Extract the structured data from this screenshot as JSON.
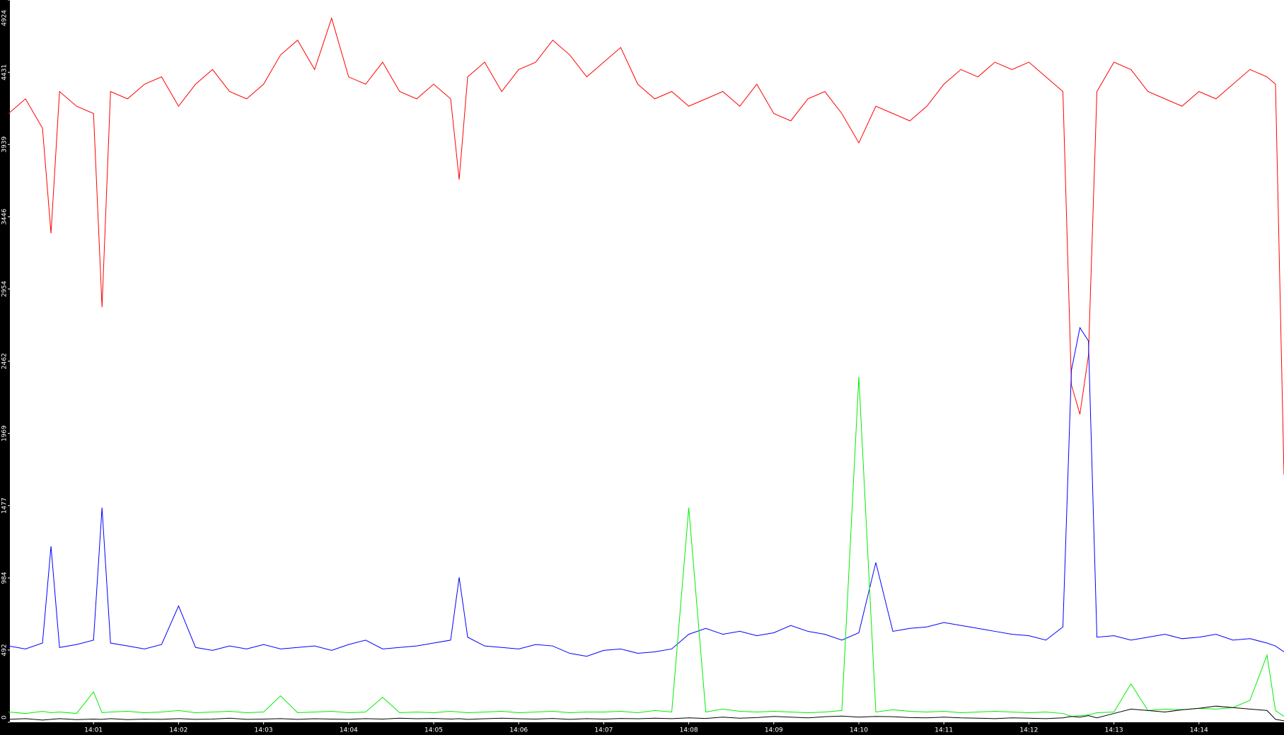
{
  "chart_data": {
    "type": "line",
    "x": [
      840.0,
      840.2,
      840.4,
      840.5,
      840.6,
      840.8,
      841.0,
      841.1,
      841.2,
      841.4,
      841.6,
      841.8,
      842.0,
      842.2,
      842.4,
      842.6,
      842.8,
      843.0,
      843.2,
      843.4,
      843.6,
      843.8,
      844.0,
      844.2,
      844.4,
      844.6,
      844.8,
      845.0,
      845.2,
      845.3,
      845.4,
      845.6,
      845.8,
      846.0,
      846.2,
      846.4,
      846.6,
      846.8,
      847.0,
      847.2,
      847.4,
      847.6,
      847.8,
      848.0,
      848.2,
      848.4,
      848.6,
      848.8,
      849.0,
      849.2,
      849.4,
      849.6,
      849.8,
      850.0,
      850.2,
      850.4,
      850.6,
      850.8,
      851.0,
      851.2,
      851.4,
      851.6,
      851.8,
      852.0,
      852.2,
      852.4,
      852.5,
      852.6,
      852.7,
      852.8,
      853.0,
      853.2,
      853.4,
      853.6,
      853.8,
      854.0,
      854.2,
      854.4,
      854.6,
      854.8,
      854.9,
      855.0
    ],
    "series": [
      {
        "color": "#ff0000",
        "values": [
          4150,
          4250,
          4050,
          3333,
          4300,
          4200,
          4150,
          2830,
          4300,
          4250,
          4350,
          4400,
          4200,
          4350,
          4450,
          4300,
          4250,
          4350,
          4550,
          4650,
          4450,
          4800,
          4400,
          4350,
          4500,
          4300,
          4250,
          4350,
          4250,
          3700,
          4400,
          4500,
          4300,
          4450,
          4500,
          4650,
          4550,
          4400,
          4500,
          4600,
          4350,
          4250,
          4300,
          4200,
          4250,
          4300,
          4200,
          4350,
          4150,
          4100,
          4250,
          4300,
          4150,
          3950,
          4200,
          4150,
          4100,
          4200,
          4350,
          4450,
          4400,
          4500,
          4450,
          4500,
          4400,
          4300,
          2300,
          2100,
          2500,
          4300,
          4500,
          4450,
          4300,
          4250,
          4200,
          4300,
          4250,
          4350,
          4450,
          4400,
          4350,
          1686
        ]
      },
      {
        "color": "#0000ff",
        "values": [
          520,
          500,
          540,
          1200,
          510,
          530,
          560,
          1463,
          540,
          520,
          500,
          530,
          793,
          510,
          490,
          520,
          500,
          530,
          500,
          510,
          520,
          490,
          530,
          560,
          500,
          510,
          520,
          540,
          560,
          988,
          580,
          520,
          510,
          500,
          530,
          520,
          470,
          450,
          490,
          500,
          470,
          480,
          500,
          600,
          640,
          600,
          620,
          590,
          610,
          660,
          620,
          600,
          560,
          610,
          1089,
          620,
          640,
          650,
          680,
          660,
          640,
          620,
          600,
          590,
          560,
          650,
          2400,
          2690,
          2600,
          580,
          590,
          560,
          580,
          600,
          570,
          580,
          600,
          560,
          570,
          540,
          520,
          480
        ]
      },
      {
        "color": "#00ee00",
        "values": [
          70,
          60,
          75,
          65,
          70,
          60,
          207,
          65,
          70,
          75,
          65,
          70,
          80,
          65,
          70,
          75,
          65,
          70,
          180,
          65,
          70,
          75,
          65,
          70,
          170,
          65,
          70,
          65,
          75,
          70,
          65,
          70,
          75,
          65,
          70,
          75,
          65,
          70,
          70,
          75,
          65,
          80,
          70,
          1463,
          70,
          90,
          75,
          70,
          75,
          70,
          65,
          70,
          80,
          2356,
          70,
          85,
          75,
          70,
          75,
          65,
          70,
          75,
          70,
          65,
          70,
          60,
          40,
          45,
          50,
          65,
          70,
          262,
          80,
          90,
          85,
          95,
          90,
          100,
          150,
          458,
          80,
          40
        ]
      },
      {
        "color": "#000000",
        "values": [
          20,
          25,
          15,
          20,
          25,
          18,
          22,
          20,
          25,
          18,
          22,
          20,
          25,
          20,
          22,
          28,
          20,
          22,
          25,
          20,
          24,
          22,
          20,
          25,
          22,
          28,
          24,
          26,
          22,
          25,
          20,
          24,
          28,
          24,
          22,
          26,
          20,
          25,
          22,
          26,
          24,
          28,
          25,
          30,
          26,
          35,
          28,
          32,
          40,
          35,
          30,
          38,
          42,
          35,
          40,
          38,
          32,
          30,
          35,
          30,
          28,
          25,
          30,
          28,
          25,
          30,
          40,
          35,
          45,
          30,
          60,
          90,
          80,
          70,
          85,
          95,
          110,
          100,
          90,
          80,
          20,
          10
        ]
      }
    ],
    "xlim": [
      840,
      855
    ],
    "xticks": [
      {
        "value": 841,
        "label": "14:01"
      },
      {
        "value": 842,
        "label": "14:02"
      },
      {
        "value": 843,
        "label": "14:03"
      },
      {
        "value": 844,
        "label": "14:04"
      },
      {
        "value": 845,
        "label": "14:05"
      },
      {
        "value": 846,
        "label": "14:06"
      },
      {
        "value": 847,
        "label": "14:07"
      },
      {
        "value": 848,
        "label": "14:08"
      },
      {
        "value": 849,
        "label": "14:09"
      },
      {
        "value": 850,
        "label": "14:10"
      },
      {
        "value": 851,
        "label": "14:11"
      },
      {
        "value": 852,
        "label": "14:12"
      },
      {
        "value": 853,
        "label": "14:13"
      },
      {
        "value": 854,
        "label": "14:14"
      }
    ],
    "ylim": [
      0,
      4924
    ],
    "yticks": [
      0,
      492,
      984,
      1477,
      1969,
      2462,
      2954,
      3446,
      3939,
      4431,
      4924
    ]
  }
}
